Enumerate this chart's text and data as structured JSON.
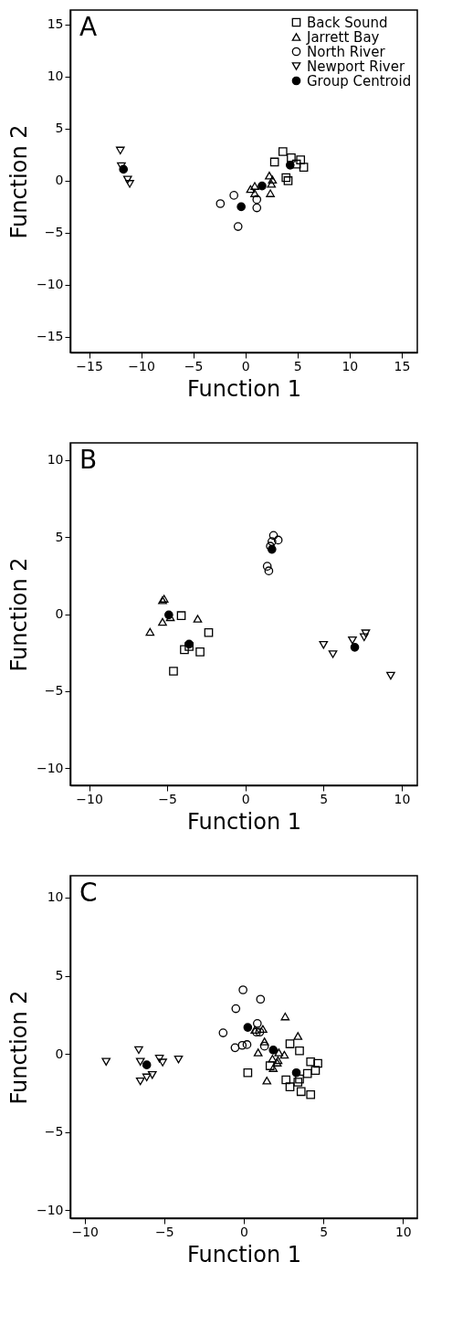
{
  "chart_data": [
    {
      "type": "scatter",
      "xlabel": "Function 1",
      "ylabel": "Function 2",
      "annotations": [
        "A"
      ],
      "legend": "top right",
      "grid": false,
      "xlim": [
        -16.8,
        16.5
      ],
      "ylim": [
        -16.5,
        16.4
      ],
      "xticks": [
        -15,
        -10,
        -5,
        0,
        5,
        10,
        15
      ],
      "yticks": [
        -15,
        -10,
        -5,
        0,
        5,
        10,
        15
      ],
      "series": [
        {
          "name": "Back Sound",
          "color": "#000000",
          "marker": "square",
          "x": [
            2.8,
            3.6,
            4.4,
            5.3,
            4.9,
            5.6,
            3.9,
            4.1
          ],
          "values": [
            1.8,
            2.8,
            2.2,
            2.0,
            1.6,
            1.3,
            0.3,
            0.0
          ]
        },
        {
          "name": "Jarrett Bay",
          "color": "#000000",
          "marker": "triangle",
          "x": [
            0.5,
            0.9,
            0.9,
            2.3,
            2.6,
            2.5,
            2.4
          ],
          "values": [
            -0.8,
            -0.5,
            -1.2,
            0.5,
            0.1,
            -0.3,
            -1.2
          ]
        },
        {
          "name": "North River",
          "color": "#000000",
          "marker": "circle",
          "x": [
            -2.4,
            -1.1,
            1.1,
            1.1,
            -0.7
          ],
          "values": [
            -2.2,
            -1.4,
            -1.8,
            -2.6,
            -4.4
          ]
        },
        {
          "name": "Newport River",
          "color": "#000000",
          "marker": "triangle-down",
          "x": [
            -12.0,
            -11.9,
            -11.3,
            -11.1
          ],
          "values": [
            2.9,
            1.4,
            0.1,
            -0.3
          ]
        },
        {
          "name": "Group Centroid",
          "color": "#000000",
          "x": [
            4.3,
            1.6,
            -0.4,
            -11.7
          ],
          "values": [
            1.5,
            -0.5,
            -2.5,
            1.1
          ]
        }
      ]
    },
    {
      "type": "scatter",
      "xlabel": "Function 1",
      "ylabel": "Function 2",
      "annotations": [
        "B"
      ],
      "legend": "top right",
      "grid": false,
      "xlim": [
        -11.2,
        11
      ],
      "ylim": [
        -11.1,
        11.1
      ],
      "xticks": [
        -10,
        -5,
        0,
        5,
        10
      ],
      "yticks": [
        -10,
        -5,
        0,
        5,
        10
      ],
      "series": [
        {
          "name": "Back Sound",
          "color": "#000000",
          "marker": "square",
          "x": [
            -4.1,
            -2.35,
            -3.9,
            -3.6,
            -2.9,
            -4.6
          ],
          "values": [
            -0.1,
            -1.2,
            -2.3,
            -2.1,
            -2.45,
            -3.7
          ]
        },
        {
          "name": "Jarrett Bay",
          "color": "#000000",
          "marker": "triangle",
          "x": [
            -5.3,
            -5.2,
            -5.3,
            -6.1,
            -4.8,
            -3.05
          ],
          "values": [
            0.9,
            1.0,
            -0.5,
            -1.15,
            -0.2,
            -0.3
          ]
        },
        {
          "name": "North River",
          "color": "#000000",
          "marker": "circle",
          "x": [
            1.8,
            2.1,
            1.7,
            1.6,
            1.4,
            1.5
          ],
          "values": [
            5.1,
            4.8,
            4.7,
            4.4,
            3.1,
            2.8
          ]
        },
        {
          "name": "Newport River",
          "color": "#000000",
          "marker": "triangle-down",
          "x": [
            5.0,
            5.6,
            6.85,
            7.6,
            7.7,
            9.3
          ],
          "values": [
            -2.0,
            -2.6,
            -1.7,
            -1.5,
            -1.25,
            -4.0
          ]
        },
        {
          "name": "Group Centroid",
          "color": "#000000",
          "x": [
            -3.6,
            -4.9,
            1.7,
            7.0
          ],
          "values": [
            -1.95,
            -0.05,
            4.2,
            -2.15
          ]
        }
      ]
    },
    {
      "type": "scatter",
      "xlabel": "Function 1",
      "ylabel": "Function 2",
      "annotations": [
        "C"
      ],
      "legend": "top right",
      "grid": false,
      "xlim": [
        -10.9,
        10.9
      ],
      "ylim": [
        -10.5,
        11.4
      ],
      "xticks": [
        -10,
        -5,
        0,
        5,
        10
      ],
      "yticks": [
        -10,
        -5,
        0,
        5,
        10
      ],
      "series": [
        {
          "name": "Back Sound",
          "color": "#000000",
          "marker": "square",
          "x": [
            2.9,
            3.5,
            0.25,
            1.65,
            2.65,
            2.9,
            3.5,
            3.4,
            3.6,
            4.2,
            4.0,
            4.5,
            4.2,
            4.65
          ],
          "values": [
            0.65,
            0.2,
            -1.2,
            -0.75,
            -1.65,
            -2.1,
            -1.6,
            -1.8,
            -2.4,
            -2.6,
            -1.25,
            -1.05,
            -0.5,
            -0.6
          ]
        },
        {
          "name": "Jarrett Bay",
          "color": "#000000",
          "marker": "triangle",
          "x": [
            0.7,
            1.2,
            2.6,
            3.4,
            1.3,
            0.9,
            2.2,
            2.55,
            1.8,
            2.15,
            2.1,
            1.85,
            1.45
          ],
          "values": [
            1.55,
            1.6,
            2.4,
            1.15,
            0.8,
            0.1,
            0.1,
            -0.05,
            -0.3,
            -0.4,
            -0.55,
            -0.9,
            -1.7
          ]
        },
        {
          "name": "North River",
          "color": "#000000",
          "marker": "circle",
          "x": [
            -1.3,
            -0.5,
            -0.05,
            1.05,
            -0.55,
            -0.1,
            0.2,
            0.85,
            0.8,
            1.0,
            1.3
          ],
          "values": [
            1.35,
            2.9,
            4.1,
            3.5,
            0.4,
            0.55,
            0.6,
            1.95,
            1.4,
            1.4,
            0.5
          ]
        },
        {
          "name": "Newport River",
          "color": "#000000",
          "marker": "triangle-down",
          "x": [
            -8.65,
            -6.6,
            -6.5,
            -6.1,
            -5.75,
            -6.5,
            -5.3,
            -5.1,
            -4.1
          ],
          "values": [
            -0.5,
            0.25,
            -0.5,
            -1.5,
            -1.35,
            -1.75,
            -0.3,
            -0.55,
            -0.35
          ]
        },
        {
          "name": "Group Centroid",
          "color": "#000000",
          "x": [
            3.3,
            1.85,
            0.25,
            -6.1
          ],
          "values": [
            -1.2,
            0.25,
            1.7,
            -0.7
          ]
        }
      ]
    }
  ]
}
